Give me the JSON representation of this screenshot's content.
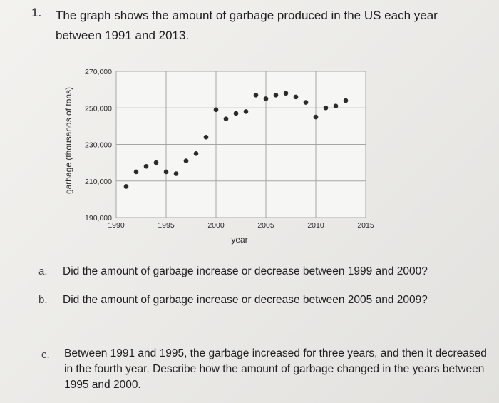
{
  "question": {
    "number": "1.",
    "text": "The graph shows the amount of garbage produced in the US each year between 1991 and 2013."
  },
  "parts": [
    {
      "label": "a.",
      "text": "Did the amount of garbage increase or decrease between 1999 and 2000?"
    },
    {
      "label": "b.",
      "text": "Did the amount of garbage increase or decrease between 2005 and 2009?"
    },
    {
      "label": "c.",
      "text": "Between 1991 and 1995, the garbage increased for three years, and then it decreased in the fourth year. Describe how the amount of garbage changed in the years between 1995 and 2000."
    }
  ],
  "chart_data": {
    "type": "scatter",
    "xlabel": "year",
    "ylabel": "garbage (thousands of tons)",
    "xlim": [
      1990,
      2015
    ],
    "ylim": [
      190000,
      270000
    ],
    "xticks": [
      "1990",
      "1995",
      "2000",
      "2005",
      "2010",
      "2015"
    ],
    "yticks": [
      "190,000",
      "210,000",
      "230,000",
      "250,000",
      "270,000"
    ],
    "grid": true,
    "marker_color": "#2b2b2b",
    "x": [
      1991,
      1992,
      1993,
      1994,
      1995,
      1996,
      1997,
      1998,
      1999,
      2000,
      2001,
      2002,
      2003,
      2004,
      2005,
      2006,
      2007,
      2008,
      2009,
      2010,
      2011,
      2012,
      2013
    ],
    "y": [
      207000,
      215000,
      218000,
      220000,
      215000,
      214000,
      221000,
      225000,
      234000,
      249000,
      244000,
      247000,
      248000,
      257000,
      255000,
      257000,
      258000,
      256000,
      253000,
      245000,
      250000,
      251000,
      254000
    ]
  }
}
